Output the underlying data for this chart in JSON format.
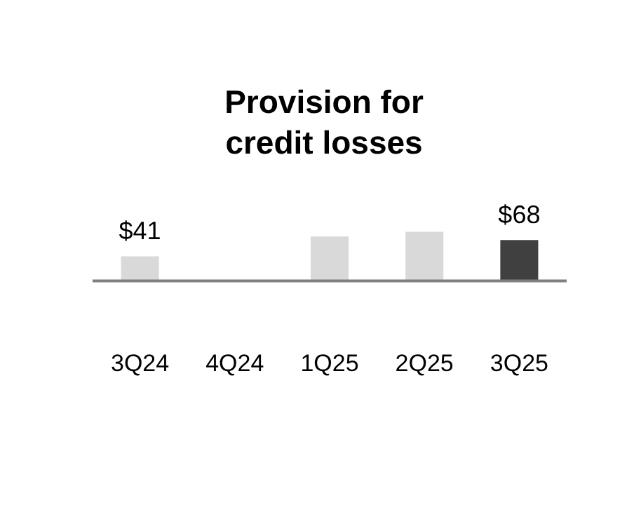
{
  "chart_data": {
    "type": "bar",
    "title": [
      "Provision for",
      "credit losses"
    ],
    "categories": [
      "3Q24",
      "4Q24",
      "1Q25",
      "2Q25",
      "3Q25"
    ],
    "values": [
      41,
      -1,
      74,
      82,
      68
    ],
    "colors": [
      "#d9d9d9",
      "#d9d9d9",
      "#d9d9d9",
      "#d9d9d9",
      "#404040"
    ],
    "value_labels": [
      "$41",
      null,
      null,
      null,
      "$68"
    ],
    "relative": false,
    "grid": false,
    "legend": false
  }
}
